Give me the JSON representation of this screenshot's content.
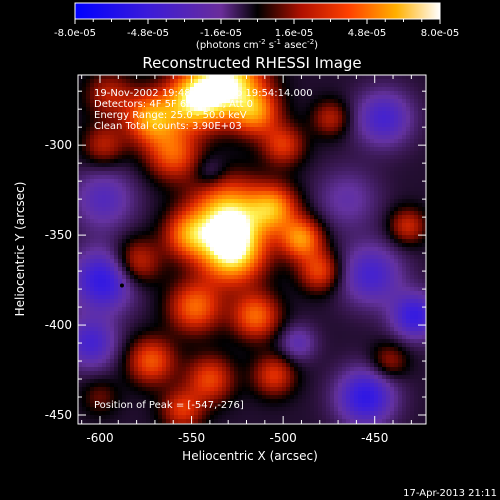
{
  "chart_data": {
    "type": "heatmap",
    "title": "Reconstructed RHESSI Image",
    "xlabel": "Heliocentric X (arcsec)",
    "ylabel": "Heliocentric Y (arcsec)",
    "xlim": [
      -612,
      -422
    ],
    "ylim": [
      -455,
      -261
    ],
    "x_ticks": [
      -600,
      -550,
      -500,
      -450
    ],
    "y_ticks": [
      -300,
      -350,
      -400,
      -450
    ],
    "colorbar": {
      "min": -8e-05,
      "max": 8e-05,
      "tick_labels": [
        "-8.0e-05",
        "-4.8e-05",
        "-1.6e-05",
        "1.6e-05",
        "4.8e-05",
        "8.0e-05"
      ],
      "unit_parts": [
        "(photons cm",
        "-2",
        " s",
        "-1",
        " asec",
        "-2",
        ")"
      ]
    },
    "info_lines": [
      "19-Nov-2002 19:48:52.000 to 19:54:14.000",
      "Detectors: 4F 5F 6F 7F 8F, Att 0",
      "Energy Range: 25.0 - 50.0 keV",
      "Clean    Total counts: 3.90E+03"
    ],
    "peak_label": "Position of Peak = [-547,-276]",
    "peak_position": [
      -547,
      -276
    ],
    "marker_position": [
      -588,
      -378
    ],
    "grid": false,
    "blobs": [
      {
        "x": -530,
        "y": -265,
        "v": 1.0,
        "s": 13
      },
      {
        "x": -548,
        "y": -275,
        "v": 0.9,
        "s": 11
      },
      {
        "x": -572,
        "y": -285,
        "v": 0.75,
        "s": 10
      },
      {
        "x": -515,
        "y": -282,
        "v": 0.6,
        "s": 9
      },
      {
        "x": -595,
        "y": -272,
        "v": 0.35,
        "s": 9
      },
      {
        "x": -560,
        "y": -305,
        "v": 0.55,
        "s": 10
      },
      {
        "x": -500,
        "y": -300,
        "v": 0.45,
        "s": 8
      },
      {
        "x": -474,
        "y": -285,
        "v": 0.35,
        "s": 7
      },
      {
        "x": -445,
        "y": -285,
        "v": -0.45,
        "s": 11
      },
      {
        "x": -530,
        "y": -340,
        "v": 0.95,
        "s": 14
      },
      {
        "x": -528,
        "y": -360,
        "v": 0.9,
        "s": 12
      },
      {
        "x": -505,
        "y": -335,
        "v": 0.65,
        "s": 9
      },
      {
        "x": -490,
        "y": -352,
        "v": 0.7,
        "s": 8
      },
      {
        "x": -480,
        "y": -370,
        "v": 0.5,
        "s": 8
      },
      {
        "x": -552,
        "y": -350,
        "v": 0.55,
        "s": 9
      },
      {
        "x": -548,
        "y": -390,
        "v": 0.6,
        "s": 10
      },
      {
        "x": -515,
        "y": -395,
        "v": 0.6,
        "s": 9
      },
      {
        "x": -580,
        "y": -365,
        "v": 0.45,
        "s": 9
      },
      {
        "x": -572,
        "y": -420,
        "v": 0.55,
        "s": 9
      },
      {
        "x": -540,
        "y": -430,
        "v": 0.5,
        "s": 9
      },
      {
        "x": -505,
        "y": -428,
        "v": 0.45,
        "s": 8
      },
      {
        "x": -555,
        "y": -447,
        "v": 0.45,
        "s": 8
      },
      {
        "x": -598,
        "y": -300,
        "v": 0.35,
        "s": 8
      },
      {
        "x": -598,
        "y": -330,
        "v": -0.35,
        "s": 12
      },
      {
        "x": -598,
        "y": -375,
        "v": -0.6,
        "s": 12
      },
      {
        "x": -605,
        "y": -410,
        "v": -0.45,
        "s": 10
      },
      {
        "x": -540,
        "y": -315,
        "v": -0.2,
        "s": 6
      },
      {
        "x": -465,
        "y": -330,
        "v": -0.25,
        "s": 12
      },
      {
        "x": -452,
        "y": -372,
        "v": -0.45,
        "s": 12
      },
      {
        "x": -428,
        "y": -395,
        "v": -0.55,
        "s": 9
      },
      {
        "x": -455,
        "y": -440,
        "v": -0.6,
        "s": 11
      },
      {
        "x": -432,
        "y": -345,
        "v": 0.4,
        "s": 7
      },
      {
        "x": -442,
        "y": -420,
        "v": 0.3,
        "s": 7
      },
      {
        "x": -492,
        "y": -410,
        "v": -0.3,
        "s": 7
      },
      {
        "x": -600,
        "y": -440,
        "v": 0.2,
        "s": 7
      }
    ]
  }
}
